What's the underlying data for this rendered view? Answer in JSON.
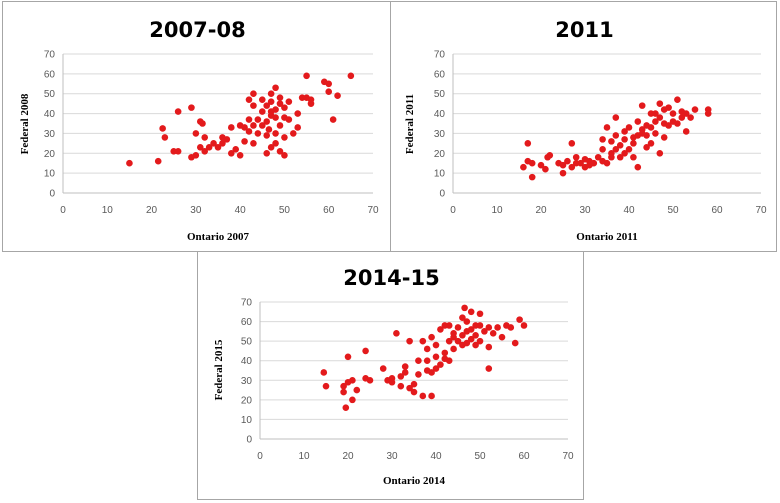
{
  "colors": {
    "marker": "#e31a1c",
    "grid": "#d9d9d9",
    "border": "#a6a6a6"
  },
  "chart_data": [
    {
      "type": "scatter",
      "title": "2007-08",
      "xlabel": "Ontario 2007",
      "ylabel": "Federal 2008",
      "xlim": [
        0,
        70
      ],
      "ylim": [
        0,
        70
      ],
      "xticks": [
        "0",
        "10",
        "20",
        "30",
        "40",
        "50",
        "60",
        "70"
      ],
      "yticks": [
        "0",
        "10",
        "20",
        "30",
        "40",
        "50",
        "60",
        "70"
      ],
      "grid": "horizontal",
      "points": [
        [
          15,
          15
        ],
        [
          21.5,
          16
        ],
        [
          22.5,
          32.5
        ],
        [
          23,
          28
        ],
        [
          25,
          21
        ],
        [
          26,
          41
        ],
        [
          26,
          21
        ],
        [
          29,
          43
        ],
        [
          29,
          18
        ],
        [
          30,
          19
        ],
        [
          30,
          30
        ],
        [
          31,
          23
        ],
        [
          31,
          36
        ],
        [
          31.5,
          35
        ],
        [
          32,
          21
        ],
        [
          32,
          28
        ],
        [
          33,
          23
        ],
        [
          34,
          25
        ],
        [
          35,
          23
        ],
        [
          36,
          25
        ],
        [
          36,
          28
        ],
        [
          37,
          27
        ],
        [
          38,
          20
        ],
        [
          38,
          33
        ],
        [
          39,
          22
        ],
        [
          40,
          19
        ],
        [
          40,
          34
        ],
        [
          41,
          26
        ],
        [
          41,
          33
        ],
        [
          42,
          31
        ],
        [
          42,
          37
        ],
        [
          42,
          47
        ],
        [
          43,
          25
        ],
        [
          43,
          34
        ],
        [
          43,
          44
        ],
        [
          43,
          50
        ],
        [
          44,
          37
        ],
        [
          45,
          41
        ],
        [
          45,
          47
        ],
        [
          46,
          20
        ],
        [
          46,
          29
        ],
        [
          46,
          36
        ],
        [
          46,
          44
        ],
        [
          46.5,
          32
        ],
        [
          47,
          23
        ],
        [
          47,
          39
        ],
        [
          47,
          46
        ],
        [
          47,
          50
        ],
        [
          48,
          25
        ],
        [
          48,
          30
        ],
        [
          48,
          38
        ],
        [
          48,
          42
        ],
        [
          48,
          53
        ],
        [
          49,
          21
        ],
        [
          49,
          34
        ],
        [
          49,
          45
        ],
        [
          49,
          48
        ],
        [
          50,
          19
        ],
        [
          50,
          28
        ],
        [
          50,
          38
        ],
        [
          50,
          43
        ],
        [
          51,
          37
        ],
        [
          51,
          46
        ],
        [
          52,
          30
        ],
        [
          53,
          33
        ],
        [
          53,
          40
        ],
        [
          54,
          48
        ],
        [
          55,
          48
        ],
        [
          55,
          59
        ],
        [
          56,
          45
        ],
        [
          56,
          47
        ],
        [
          59,
          56
        ],
        [
          60,
          51
        ],
        [
          60,
          55
        ],
        [
          61,
          37
        ],
        [
          62,
          49
        ],
        [
          65,
          59
        ],
        [
          47,
          41
        ],
        [
          45,
          34
        ],
        [
          44,
          30
        ]
      ]
    },
    {
      "type": "scatter",
      "title": "2011",
      "xlabel": "Ontario 2011",
      "ylabel": "Federal 2011",
      "xlim": [
        0,
        70
      ],
      "ylim": [
        0,
        70
      ],
      "xticks": [
        "0",
        "10",
        "20",
        "30",
        "40",
        "50",
        "60",
        "70"
      ],
      "yticks": [
        "0",
        "10",
        "20",
        "30",
        "40",
        "50",
        "60",
        "70"
      ],
      "grid": "horizontal",
      "points": [
        [
          16,
          13
        ],
        [
          17,
          25
        ],
        [
          17,
          16
        ],
        [
          18,
          8
        ],
        [
          18,
          15
        ],
        [
          20,
          14
        ],
        [
          21,
          12
        ],
        [
          21.5,
          18
        ],
        [
          22,
          19
        ],
        [
          24,
          15
        ],
        [
          25,
          10
        ],
        [
          25,
          14
        ],
        [
          26,
          16
        ],
        [
          27,
          13
        ],
        [
          27,
          25
        ],
        [
          28,
          15
        ],
        [
          28,
          18
        ],
        [
          29,
          15
        ],
        [
          30,
          17
        ],
        [
          30,
          13
        ],
        [
          31,
          16
        ],
        [
          31,
          14
        ],
        [
          32,
          15
        ],
        [
          33,
          18
        ],
        [
          34,
          16
        ],
        [
          34,
          27
        ],
        [
          34,
          22
        ],
        [
          35,
          15
        ],
        [
          35,
          33
        ],
        [
          36,
          18
        ],
        [
          36,
          20
        ],
        [
          36,
          26
        ],
        [
          37,
          22
        ],
        [
          37,
          29
        ],
        [
          37,
          38
        ],
        [
          38,
          24
        ],
        [
          38,
          18
        ],
        [
          39,
          20
        ],
        [
          39,
          31
        ],
        [
          40,
          22
        ],
        [
          40,
          33
        ],
        [
          41,
          18
        ],
        [
          41,
          25
        ],
        [
          41,
          28
        ],
        [
          42,
          13
        ],
        [
          42,
          29
        ],
        [
          42,
          36
        ],
        [
          43,
          32
        ],
        [
          43,
          44
        ],
        [
          44,
          23
        ],
        [
          44,
          29
        ],
        [
          44,
          34
        ],
        [
          45,
          25
        ],
        [
          45,
          33
        ],
        [
          45,
          40
        ],
        [
          46,
          30
        ],
        [
          46,
          36
        ],
        [
          47,
          20
        ],
        [
          47,
          38
        ],
        [
          47,
          45
        ],
        [
          48,
          28
        ],
        [
          48,
          35
        ],
        [
          48,
          42
        ],
        [
          49,
          34
        ],
        [
          49,
          43
        ],
        [
          50,
          36
        ],
        [
          50,
          40
        ],
        [
          51,
          35
        ],
        [
          51,
          47
        ],
        [
          52,
          38
        ],
        [
          52,
          41
        ],
        [
          53,
          31
        ],
        [
          53,
          40
        ],
        [
          54,
          38
        ],
        [
          55,
          42
        ],
        [
          58,
          40
        ],
        [
          58,
          42
        ],
        [
          43,
          30
        ],
        [
          39,
          27
        ],
        [
          46,
          40
        ]
      ]
    },
    {
      "type": "scatter",
      "title": "2014-15",
      "xlabel": "Ontario 2014",
      "ylabel": "Federal 2015",
      "xlim": [
        0,
        70
      ],
      "ylim": [
        0,
        70
      ],
      "xticks": [
        "0",
        "10",
        "20",
        "30",
        "40",
        "50",
        "60",
        "70"
      ],
      "yticks": [
        "0",
        "10",
        "20",
        "30",
        "40",
        "50",
        "60",
        "70"
      ],
      "grid": "horizontal",
      "points": [
        [
          14.5,
          34
        ],
        [
          15,
          27
        ],
        [
          19,
          27
        ],
        [
          19,
          24
        ],
        [
          19.5,
          16
        ],
        [
          20,
          42
        ],
        [
          20,
          29
        ],
        [
          21,
          30
        ],
        [
          21,
          20
        ],
        [
          22,
          25
        ],
        [
          24,
          45
        ],
        [
          24,
          31
        ],
        [
          25,
          30
        ],
        [
          28,
          36
        ],
        [
          29,
          30
        ],
        [
          30,
          31
        ],
        [
          30,
          29
        ],
        [
          31,
          54
        ],
        [
          32,
          27
        ],
        [
          32,
          32
        ],
        [
          33,
          34
        ],
        [
          33,
          37
        ],
        [
          34,
          50
        ],
        [
          34,
          26
        ],
        [
          35,
          24
        ],
        [
          35,
          28
        ],
        [
          36,
          40
        ],
        [
          36,
          33
        ],
        [
          37,
          22
        ],
        [
          37,
          50
        ],
        [
          38,
          35
        ],
        [
          38,
          40
        ],
        [
          38,
          46
        ],
        [
          39,
          22
        ],
        [
          39,
          34
        ],
        [
          39,
          52
        ],
        [
          40,
          36
        ],
        [
          40,
          48
        ],
        [
          41,
          38
        ],
        [
          41,
          56
        ],
        [
          42,
          41
        ],
        [
          42,
          58
        ],
        [
          43,
          40
        ],
        [
          43,
          50
        ],
        [
          43,
          58
        ],
        [
          44,
          46
        ],
        [
          44,
          52
        ],
        [
          45,
          50
        ],
        [
          45,
          57
        ],
        [
          46,
          48
        ],
        [
          46,
          53
        ],
        [
          46,
          62
        ],
        [
          46.5,
          67
        ],
        [
          47,
          49
        ],
        [
          47,
          55
        ],
        [
          48,
          51
        ],
        [
          48,
          56
        ],
        [
          48,
          65
        ],
        [
          49,
          48
        ],
        [
          49,
          53
        ],
        [
          50,
          50
        ],
        [
          50,
          58
        ],
        [
          50,
          64
        ],
        [
          51,
          55
        ],
        [
          52,
          57
        ],
        [
          52,
          36
        ],
        [
          52,
          47
        ],
        [
          53,
          54
        ],
        [
          54,
          57
        ],
        [
          55,
          52
        ],
        [
          56,
          58
        ],
        [
          57,
          57
        ],
        [
          58,
          49
        ],
        [
          59,
          61
        ],
        [
          60,
          58
        ],
        [
          49,
          58
        ],
        [
          47,
          60
        ],
        [
          44,
          54
        ],
        [
          42,
          44
        ],
        [
          40,
          42
        ]
      ]
    }
  ]
}
